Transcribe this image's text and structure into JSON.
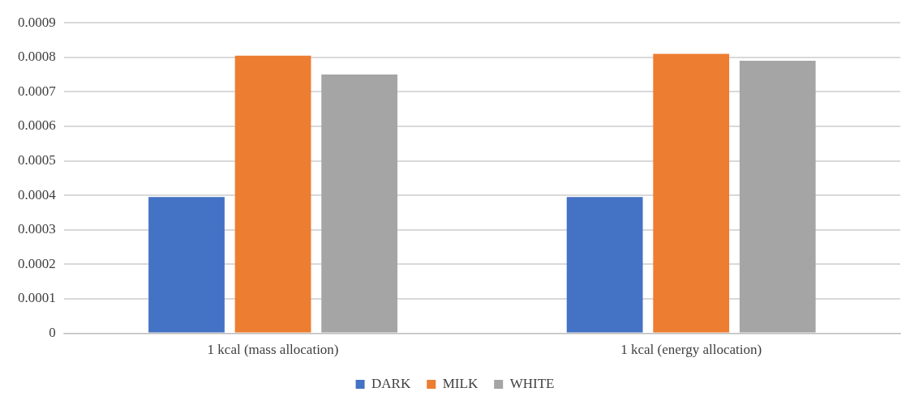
{
  "chart_data": {
    "type": "bar",
    "categories": [
      "1 kcal (mass allocation)",
      "1 kcal (energy allocation)"
    ],
    "series": [
      {
        "name": "DARK",
        "color": "#4472c4",
        "values": [
          0.000395,
          0.000395
        ]
      },
      {
        "name": "MILK",
        "color": "#ed7d31",
        "values": [
          0.000805,
          0.00081
        ]
      },
      {
        "name": "WHITE",
        "color": "#a5a5a5",
        "values": [
          0.00075,
          0.00079
        ]
      }
    ],
    "ylim": [
      0,
      0.0009
    ],
    "yticks": [
      0,
      0.0001,
      0.0002,
      0.0003,
      0.0004,
      0.0005,
      0.0006,
      0.0007,
      0.0008,
      0.0009
    ],
    "grid": "y",
    "legend": "bottom"
  }
}
